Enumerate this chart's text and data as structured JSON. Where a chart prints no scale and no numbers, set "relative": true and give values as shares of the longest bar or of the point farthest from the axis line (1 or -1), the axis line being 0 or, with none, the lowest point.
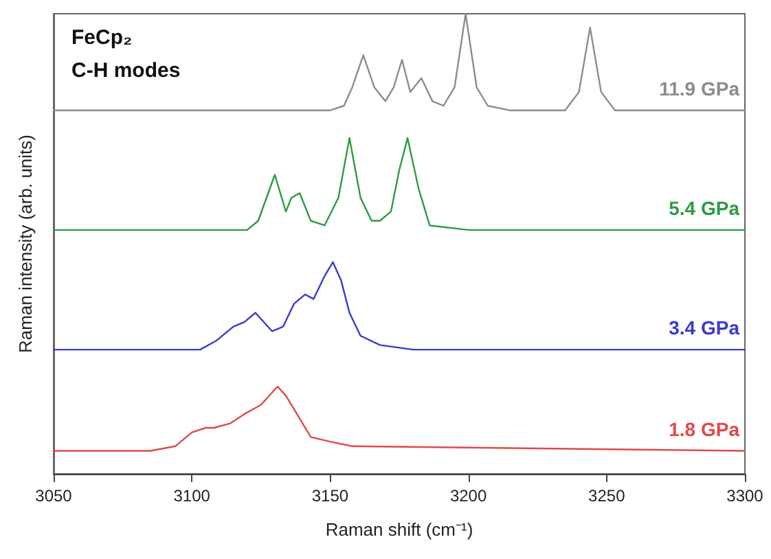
{
  "chart_data": {
    "type": "line",
    "relative": true,
    "xlabel": "Raman shift (cm⁻¹)",
    "ylabel": "Raman intensity (arb. units)",
    "annotations": [
      "FeCp₂",
      "C-H modes"
    ],
    "xlim": [
      3050,
      3300
    ],
    "xticks": [
      3050,
      3100,
      3150,
      3200,
      3250,
      3300
    ],
    "grid": false,
    "legend": false,
    "marker": "none",
    "line_style": "solid",
    "series": [
      {
        "name": "11.9 GPa",
        "color": "#8c8c8c",
        "x": [
          3050,
          3100,
          3150,
          3155,
          3158,
          3162,
          3166,
          3170,
          3173,
          3176,
          3179,
          3183,
          3187,
          3191,
          3195,
          3199,
          3203,
          3207,
          3215,
          3235,
          3240,
          3244,
          3248,
          3253,
          3270,
          3300
        ],
        "values": [
          0.79,
          0.79,
          0.79,
          0.8,
          0.84,
          0.91,
          0.84,
          0.81,
          0.84,
          0.9,
          0.83,
          0.86,
          0.81,
          0.8,
          0.84,
          1.0,
          0.84,
          0.8,
          0.79,
          0.79,
          0.83,
          0.97,
          0.83,
          0.79,
          0.79,
          0.79
        ]
      },
      {
        "name": "5.4 GPa",
        "color": "#2e9a45",
        "x": [
          3050,
          3100,
          3120,
          3124,
          3127,
          3130,
          3134,
          3136,
          3139,
          3143,
          3148,
          3153,
          3157,
          3161,
          3165,
          3168,
          3172,
          3175,
          3178,
          3182,
          3186,
          3200,
          3300
        ],
        "values": [
          0.53,
          0.53,
          0.53,
          0.55,
          0.6,
          0.65,
          0.57,
          0.6,
          0.61,
          0.55,
          0.54,
          0.6,
          0.73,
          0.6,
          0.55,
          0.55,
          0.57,
          0.66,
          0.73,
          0.62,
          0.54,
          0.53,
          0.53
        ]
      },
      {
        "name": "3.4 GPa",
        "color": "#3a3ad0",
        "x": [
          3050,
          3090,
          3103,
          3109,
          3115,
          3119,
          3123,
          3129,
          3133,
          3137,
          3141,
          3144,
          3148,
          3151,
          3154,
          3157,
          3161,
          3168,
          3180,
          3300
        ],
        "values": [
          0.27,
          0.27,
          0.27,
          0.29,
          0.32,
          0.33,
          0.35,
          0.31,
          0.32,
          0.37,
          0.39,
          0.38,
          0.43,
          0.46,
          0.42,
          0.35,
          0.3,
          0.28,
          0.27,
          0.27
        ]
      },
      {
        "name": "1.8 GPa",
        "color": "#e04a4a",
        "x": [
          3050,
          3085,
          3094,
          3100,
          3105,
          3108,
          3114,
          3119,
          3125,
          3131,
          3134,
          3138,
          3143,
          3150,
          3158,
          3300
        ],
        "values": [
          0.05,
          0.05,
          0.06,
          0.09,
          0.1,
          0.1,
          0.11,
          0.13,
          0.15,
          0.19,
          0.17,
          0.13,
          0.08,
          0.07,
          0.06,
          0.05
        ]
      }
    ]
  }
}
